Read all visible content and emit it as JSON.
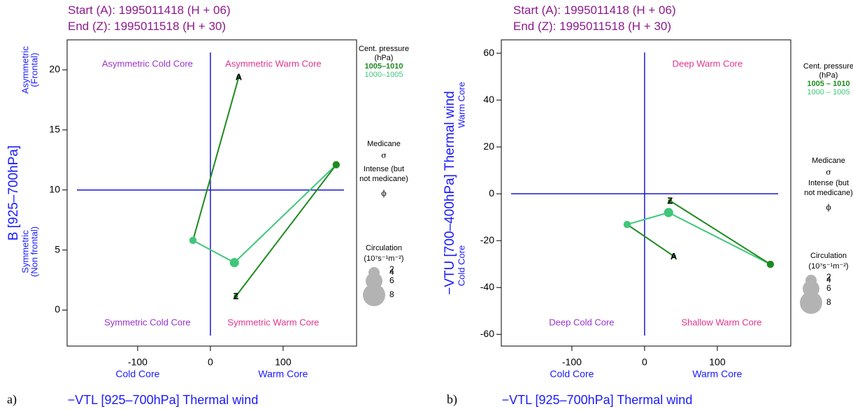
{
  "chart_data": [
    {
      "type": "trajectory",
      "panel_label": "a)",
      "title_lines": [
        "Start (A): 1995011418 (H + 06)",
        "End (Z):  1995011518 (H + 30)"
      ],
      "quadrant_labels": {
        "top_left": "Asymmetric Cold Core",
        "top_right": "Asymmetric Warm Core",
        "bottom_left": "Symmetric Cold Core",
        "bottom_right": "Symmetric Warm Core"
      },
      "x_label": "−VTL [925–700hPa] Thermal wind",
      "x_side_labels": [
        "Cold Core",
        "Warm Core"
      ],
      "y_label": "B [925–700hPa]",
      "y_side_labels": {
        "top": [
          "Asymmetric",
          "(Frontal)"
        ],
        "bottom": [
          "Symmetric",
          "(Non frontal)"
        ]
      },
      "xlim": [
        -197,
        201
      ],
      "xticks": [
        -100,
        0,
        100
      ],
      "ylim": [
        -3,
        22.5
      ],
      "yticks": [
        0,
        5,
        10,
        15,
        20
      ],
      "center_lines": {
        "x": 0,
        "y": 10
      },
      "x": [
        39,
        -24,
        33,
        173,
        35
      ],
      "y": [
        19.4,
        5.8,
        3.95,
        12.1,
        1.15
      ],
      "sizes": [
        1.5,
        2.6,
        3.3,
        2.6,
        1.5
      ],
      "colors": [
        "#1e8b1e",
        "#3fc77a",
        "#3fc77a",
        "#1e8b1e",
        "#1e8b1e"
      ],
      "point_labels": [
        "A",
        null,
        null,
        null,
        "Z"
      ],
      "legend": {
        "pressure_title": [
          "Cent. pressure",
          "(hPa)"
        ],
        "pressure_classes": [
          {
            "name": "1005–1010",
            "color": "#1e8b1e"
          },
          {
            "name": "1000–1005",
            "color": "#3fc77a"
          }
        ],
        "medicane": [
          "Medicane",
          "σ"
        ],
        "intense": [
          "Intense (but",
          "not medicane)",
          "ϕ"
        ],
        "circulation_title": [
          "Circulation",
          "(10⁷s⁻¹m⁻²)"
        ],
        "circulation_sizes": [
          2,
          4,
          6,
          8
        ]
      }
    },
    {
      "type": "trajectory",
      "panel_label": "b)",
      "title_lines": [
        "Start (A): 1995011418 (H + 06)",
        "End (Z):  1995011518 (H + 30)"
      ],
      "quadrant_labels": {
        "top_left": null,
        "top_right": "Deep Warm Core",
        "bottom_left": "Deep Cold Core",
        "bottom_right": "Shallow Warm Core"
      },
      "x_label": "−VTL [925–700hPa] Thermal wind",
      "x_side_labels": [
        "Cold Core",
        "Warm Core"
      ],
      "y_label": "−VTU [700–400hPa] Thermal wind",
      "y_side_labels": {
        "top": [
          "Warm Core"
        ],
        "bottom": [
          "Cold Core"
        ]
      },
      "xlim": [
        -197,
        201
      ],
      "xticks": [
        -100,
        0,
        100
      ],
      "ylim": [
        -65,
        65.7
      ],
      "yticks": [
        -60,
        -40,
        -20,
        0,
        20,
        40,
        60
      ],
      "center_lines": {
        "x": 0,
        "y": 0
      },
      "x": [
        40,
        -24,
        33,
        173,
        35
      ],
      "y": [
        -26.6,
        -13.1,
        -8,
        -30.1,
        -3
      ],
      "sizes": [
        1.5,
        2.6,
        3.3,
        2.6,
        1.5
      ],
      "colors": [
        "#1e8b1e",
        "#3fc77a",
        "#3fc77a",
        "#1e8b1e",
        "#1e8b1e"
      ],
      "point_labels": [
        "A",
        null,
        null,
        null,
        "Z"
      ],
      "legend": {
        "pressure_title": [
          "Cent. pressure",
          "(hPa)"
        ],
        "pressure_classes": [
          {
            "name": "1005 – 1010",
            "color": "#1e8b1e"
          },
          {
            "name": "1000 – 1005",
            "color": "#3fc77a"
          }
        ],
        "medicane": [
          "Medicane",
          "σ"
        ],
        "intense": [
          "Intense (but",
          "not medicane)",
          "ϕ"
        ],
        "circulation_title": [
          "Circulation",
          "(10⁷s⁻¹m⁻²)"
        ],
        "circulation_sizes": [
          2,
          4,
          6,
          8
        ]
      }
    }
  ]
}
